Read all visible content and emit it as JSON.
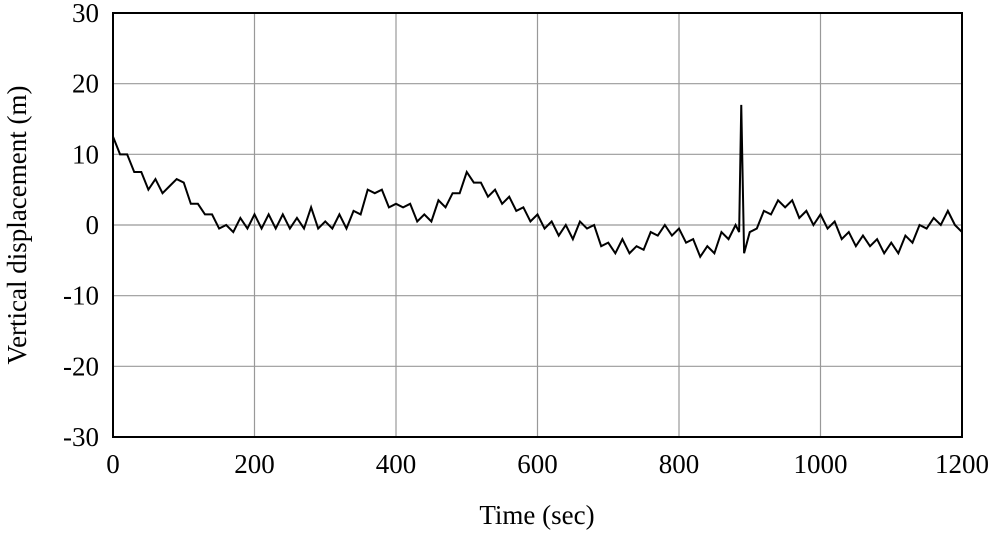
{
  "chart_data": {
    "type": "line",
    "x_label": "Time (sec)",
    "y_label": "Vertical displacement (m)",
    "xlim": [
      0,
      1200
    ],
    "xticks": [
      0,
      200,
      400,
      600,
      800,
      1000,
      1200
    ],
    "ylim": [
      -30,
      30
    ],
    "yticks": [
      -30,
      -20,
      -10,
      0,
      10,
      20,
      30
    ],
    "grid": true,
    "x": [
      0,
      10,
      20,
      30,
      40,
      50,
      60,
      70,
      80,
      90,
      100,
      110,
      120,
      130,
      140,
      150,
      160,
      170,
      180,
      190,
      200,
      210,
      220,
      230,
      240,
      250,
      260,
      270,
      280,
      290,
      300,
      310,
      320,
      330,
      340,
      350,
      360,
      370,
      380,
      390,
      400,
      410,
      420,
      430,
      440,
      450,
      460,
      470,
      480,
      490,
      500,
      510,
      520,
      530,
      540,
      550,
      560,
      570,
      580,
      590,
      600,
      610,
      620,
      630,
      640,
      650,
      660,
      670,
      680,
      690,
      700,
      710,
      720,
      730,
      740,
      750,
      760,
      770,
      780,
      790,
      800,
      810,
      820,
      830,
      840,
      850,
      860,
      870,
      880,
      885,
      888,
      892,
      900,
      910,
      920,
      930,
      940,
      950,
      960,
      970,
      980,
      990,
      1000,
      1010,
      1020,
      1030,
      1040,
      1050,
      1060,
      1070,
      1080,
      1090,
      1100,
      1110,
      1120,
      1130,
      1140,
      1150,
      1160,
      1170,
      1180,
      1190,
      1200
    ],
    "series": [
      {
        "color": "#000000",
        "values": [
          12.5,
          10,
          10,
          7.5,
          7.5,
          5,
          6.5,
          4.5,
          5.5,
          6.5,
          6,
          3,
          3,
          1.5,
          1.5,
          -0.5,
          0,
          -1,
          1,
          -0.5,
          1.5,
          -0.5,
          1.5,
          -0.5,
          1.5,
          -0.5,
          1,
          -0.5,
          2.5,
          -0.5,
          0.5,
          -0.5,
          1.5,
          -0.5,
          2,
          1.5,
          5,
          4.5,
          5,
          2.5,
          3,
          2.5,
          3,
          0.5,
          1.5,
          0.5,
          3.5,
          2.5,
          4.5,
          4.5,
          7.5,
          6,
          6,
          4,
          5,
          3,
          4,
          2,
          2.5,
          0.5,
          1.5,
          -0.5,
          0.5,
          -1.5,
          0,
          -2,
          0.5,
          -0.5,
          0,
          -3,
          -2.5,
          -4,
          -2,
          -4,
          -3,
          -3.5,
          -1,
          -1.5,
          0,
          -1.5,
          -0.5,
          -2.5,
          -2,
          -4.5,
          -3,
          -4,
          -1,
          -2,
          0,
          -1,
          17,
          -4,
          -1,
          -0.5,
          2,
          1.5,
          3.5,
          2.5,
          3.5,
          1,
          2,
          0,
          1.5,
          -0.5,
          0.5,
          -2,
          -1,
          -3,
          -1.5,
          -3,
          -2,
          -4,
          -2.5,
          -4,
          -1.5,
          -2.5,
          0,
          -0.5,
          1,
          0,
          2,
          0,
          -1
        ]
      }
    ]
  }
}
